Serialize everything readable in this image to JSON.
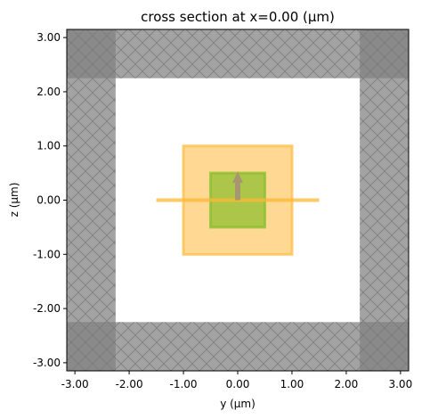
{
  "chart_data": {
    "type": "diagram",
    "title": "cross section at x=0.00 (μm)",
    "xlabel": "y (μm)",
    "ylabel": "z (μm)",
    "xlim": [
      -3.15,
      3.15
    ],
    "ylim": [
      -3.15,
      3.15
    ],
    "x_ticks": [
      -3,
      -2,
      -1,
      0,
      1,
      2,
      3
    ],
    "x_tick_labels": [
      "-3.00",
      "-2.00",
      "-1.00",
      "0.00",
      "1.00",
      "2.00",
      "3.00"
    ],
    "y_ticks": [
      3,
      2,
      1,
      0,
      -1,
      -2,
      -3
    ],
    "y_tick_labels": [
      "3.00",
      "2.00",
      "1.00",
      "0.00",
      "-1.00",
      "-2.00",
      "-3.00"
    ],
    "grid": false,
    "pml_regions": [
      {
        "name": "left",
        "y": [
          -3.15,
          -2.25
        ],
        "z": [
          -3.15,
          3.15
        ]
      },
      {
        "name": "right",
        "y": [
          2.25,
          3.15
        ],
        "z": [
          -3.15,
          3.15
        ]
      },
      {
        "name": "bottom",
        "y": [
          -3.15,
          3.15
        ],
        "z": [
          -3.15,
          -2.25
        ]
      },
      {
        "name": "top",
        "y": [
          -3.15,
          3.15
        ],
        "z": [
          2.25,
          3.15
        ]
      }
    ],
    "structures": [
      {
        "name": "outer-box",
        "y": [
          -1.0,
          1.0
        ],
        "z": [
          -1.0,
          1.0
        ],
        "color": "#ffc04d"
      },
      {
        "name": "inner-box",
        "y": [
          -0.5,
          0.5
        ],
        "z": [
          -0.5,
          0.5
        ],
        "color": "#8fbf2f"
      }
    ],
    "source_line": {
      "y": [
        -1.5,
        1.5
      ],
      "z": 0.0,
      "color": "#ffb733"
    },
    "arrow": {
      "y": 0.0,
      "z_from": 0.0,
      "z_to": 0.5,
      "color": "#a89670"
    },
    "colors": {
      "pml_fill": "#a3a3a3",
      "pml_corner": "#8a8a8a",
      "hatch": "#7d7d7d"
    }
  }
}
